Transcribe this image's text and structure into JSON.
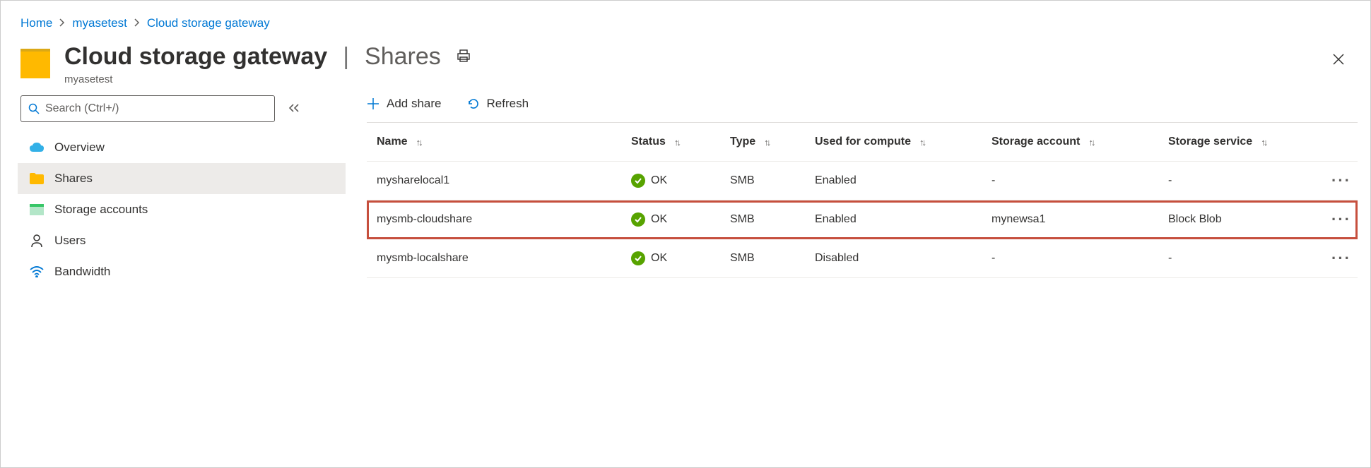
{
  "breadcrumb": {
    "home": "Home",
    "item1": "myasetest",
    "item2": "Cloud storage gateway"
  },
  "header": {
    "title_main": "Cloud storage gateway",
    "title_sub": "Shares",
    "subtext": "myasetest"
  },
  "search": {
    "placeholder": "Search (Ctrl+/)"
  },
  "sidebar": {
    "items": [
      {
        "label": "Overview"
      },
      {
        "label": "Shares"
      },
      {
        "label": "Storage accounts"
      },
      {
        "label": "Users"
      },
      {
        "label": "Bandwidth"
      }
    ]
  },
  "toolbar": {
    "add_label": "Add share",
    "refresh_label": "Refresh"
  },
  "table": {
    "columns": {
      "name": "Name",
      "status": "Status",
      "type": "Type",
      "compute": "Used for compute",
      "account": "Storage account",
      "service": "Storage service"
    },
    "rows": [
      {
        "name": "mysharelocal1",
        "status": "OK",
        "type": "SMB",
        "compute": "Enabled",
        "account": "-",
        "service": "-",
        "highlight": false
      },
      {
        "name": "mysmb-cloudshare",
        "status": "OK",
        "type": "SMB",
        "compute": "Enabled",
        "account": "mynewsa1",
        "service": "Block Blob",
        "highlight": true
      },
      {
        "name": "mysmb-localshare",
        "status": "OK",
        "type": "SMB",
        "compute": "Disabled",
        "account": "-",
        "service": "-",
        "highlight": false
      }
    ]
  }
}
